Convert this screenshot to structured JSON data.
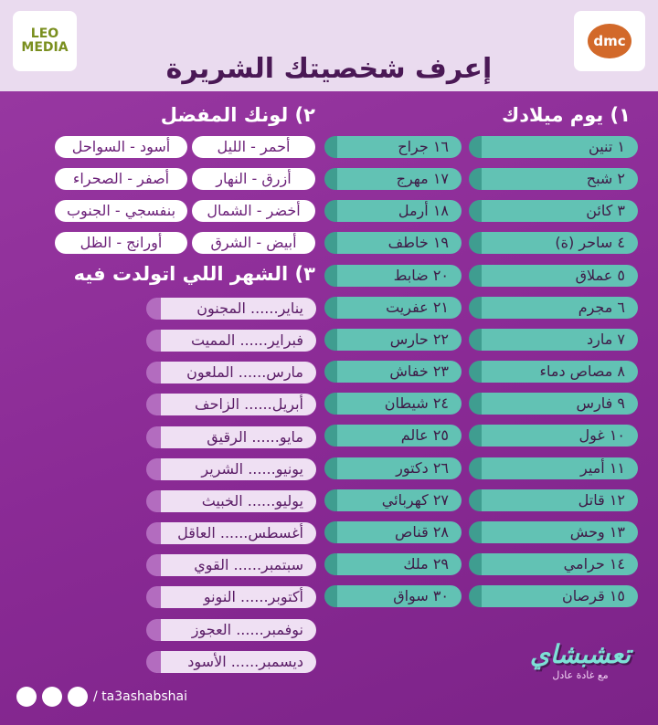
{
  "header": {
    "title": "إعرف شخصيتك الشريرة",
    "left_logo": "LEO MEDIA",
    "right_logo": "dmc"
  },
  "birthday": {
    "title": "١) يوم ميلادك",
    "col1": [
      "١ تنين",
      "٢ شبح",
      "٣ كائن",
      "٤ ساحر (ة)",
      "٥ عملاق",
      "٦ مجرم",
      "٧ مارد",
      "٨ مصاص دماء",
      "٩ فارس",
      "١٠ غول",
      "١١ أمير",
      "١٢ قاتل",
      "١٣ وحش",
      "١٤ حرامي",
      "١٥ قرصان"
    ],
    "col2": [
      "١٦ جراح",
      "١٧ مهرج",
      "١٨ أرمل",
      "١٩ خاطف",
      "٢٠ ضابط",
      "٢١ عفريت",
      "٢٢ حارس",
      "٢٣ خفاش",
      "٢٤ شيطان",
      "٢٥ عالم",
      "٢٦ دكتور",
      "٢٧ كهربائي",
      "٢٨ قناص",
      "٢٩ ملك",
      "٣٠ سواق"
    ]
  },
  "color": {
    "title": "٢) لونك المفضل",
    "col1": [
      "أحمر - الليل",
      "أزرق - النهار",
      "أخضر - الشمال",
      "أبيض - الشرق"
    ],
    "col2": [
      "أسود - السواحل",
      "أصفر - الصحراء",
      "بنفسجي - الجنوب",
      "أورانج - الظل"
    ]
  },
  "month": {
    "title": "٣) الشهر اللي اتولدت فيه",
    "items": [
      "يناير...... المجنون",
      "فبراير...... المميت",
      "مارس...... الملعون",
      "أبريل...... الزاحف",
      "مايو...... الرقيق",
      "يونيو...... الشرير",
      "يوليو...... الخبيث",
      "أغسطس...... العاقل",
      "سبتمبر...... القوي",
      "أكتوبر...... النونو",
      "نوفمبر...... العجوز",
      "ديسمبر...... الأسود"
    ]
  },
  "footer": {
    "handle": "/ ta3ashabshai",
    "brand": "تعشبشاي",
    "brand_sub": "مع غادة عادل"
  }
}
